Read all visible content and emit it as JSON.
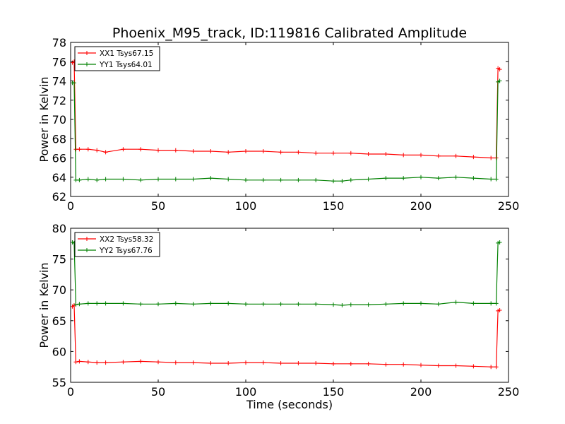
{
  "title": "Phoenix_M95_track, ID:119816 Calibrated Amplitude",
  "chart_data": [
    {
      "type": "line",
      "ylabel": "Power in Kelvin",
      "xlabel": "",
      "xlim": [
        0,
        250
      ],
      "ylim": [
        62,
        78
      ],
      "xticks": [
        0,
        50,
        100,
        150,
        200,
        250
      ],
      "yticks": [
        62,
        64,
        66,
        68,
        70,
        72,
        74,
        76,
        78
      ],
      "legend_position": "top-left",
      "series": [
        {
          "name": "XX1 Tsys67.15",
          "color": "#ff0000",
          "x": [
            1,
            2,
            3,
            5,
            10,
            15,
            20,
            30,
            40,
            50,
            60,
            70,
            80,
            90,
            100,
            110,
            120,
            130,
            140,
            150,
            160,
            170,
            180,
            190,
            200,
            210,
            220,
            230,
            240,
            243,
            244,
            245
          ],
          "values": [
            75.9,
            76.0,
            66.9,
            66.9,
            66.9,
            66.8,
            66.6,
            66.9,
            66.9,
            66.8,
            66.8,
            66.7,
            66.7,
            66.6,
            66.7,
            66.7,
            66.6,
            66.6,
            66.5,
            66.5,
            66.5,
            66.4,
            66.4,
            66.3,
            66.3,
            66.2,
            66.2,
            66.1,
            66.0,
            66.0,
            75.3,
            75.2
          ]
        },
        {
          "name": "YY1 Tsys64.01",
          "color": "#008000",
          "x": [
            1,
            2,
            3,
            5,
            10,
            15,
            20,
            30,
            40,
            50,
            60,
            70,
            80,
            90,
            100,
            110,
            120,
            130,
            140,
            150,
            155,
            160,
            170,
            180,
            190,
            200,
            210,
            220,
            230,
            240,
            243,
            244,
            245
          ],
          "values": [
            73.8,
            73.8,
            63.7,
            63.7,
            63.8,
            63.7,
            63.8,
            63.8,
            63.7,
            63.8,
            63.8,
            63.8,
            63.9,
            63.8,
            63.7,
            63.7,
            63.7,
            63.7,
            63.7,
            63.6,
            63.6,
            63.7,
            63.8,
            63.9,
            63.9,
            64.0,
            63.9,
            64.0,
            63.9,
            63.8,
            63.8,
            73.9,
            74.0
          ]
        }
      ]
    },
    {
      "type": "line",
      "ylabel": "Power in Kelvin",
      "xlabel": "Time (seconds)",
      "xlim": [
        0,
        250
      ],
      "ylim": [
        55,
        80
      ],
      "xticks": [
        0,
        50,
        100,
        150,
        200,
        250
      ],
      "yticks": [
        55,
        60,
        65,
        70,
        75,
        80
      ],
      "legend_position": "top-left",
      "series": [
        {
          "name": "XX2 Tsys58.32",
          "color": "#ff0000",
          "x": [
            1,
            2,
            3,
            5,
            10,
            15,
            20,
            30,
            40,
            50,
            60,
            70,
            80,
            90,
            100,
            110,
            120,
            130,
            140,
            150,
            160,
            170,
            180,
            190,
            200,
            210,
            220,
            230,
            240,
            243,
            244,
            245
          ],
          "values": [
            67.3,
            67.5,
            58.3,
            58.4,
            58.3,
            58.2,
            58.2,
            58.3,
            58.4,
            58.3,
            58.2,
            58.2,
            58.1,
            58.1,
            58.2,
            58.2,
            58.1,
            58.1,
            58.1,
            58.0,
            58.0,
            58.0,
            57.9,
            57.9,
            57.8,
            57.7,
            57.7,
            57.6,
            57.5,
            57.5,
            66.6,
            66.7
          ]
        },
        {
          "name": "YY2 Tsys67.76",
          "color": "#008000",
          "x": [
            1,
            2,
            3,
            5,
            10,
            15,
            20,
            30,
            40,
            50,
            60,
            70,
            80,
            90,
            100,
            110,
            120,
            130,
            140,
            150,
            155,
            160,
            170,
            180,
            190,
            200,
            210,
            220,
            230,
            240,
            243,
            244,
            245
          ],
          "values": [
            77.7,
            77.6,
            67.6,
            67.7,
            67.8,
            67.8,
            67.8,
            67.8,
            67.7,
            67.7,
            67.8,
            67.7,
            67.8,
            67.8,
            67.7,
            67.7,
            67.7,
            67.7,
            67.7,
            67.6,
            67.5,
            67.6,
            67.6,
            67.7,
            67.8,
            67.8,
            67.7,
            68.0,
            67.8,
            67.8,
            67.8,
            77.6,
            77.7
          ]
        }
      ]
    }
  ]
}
